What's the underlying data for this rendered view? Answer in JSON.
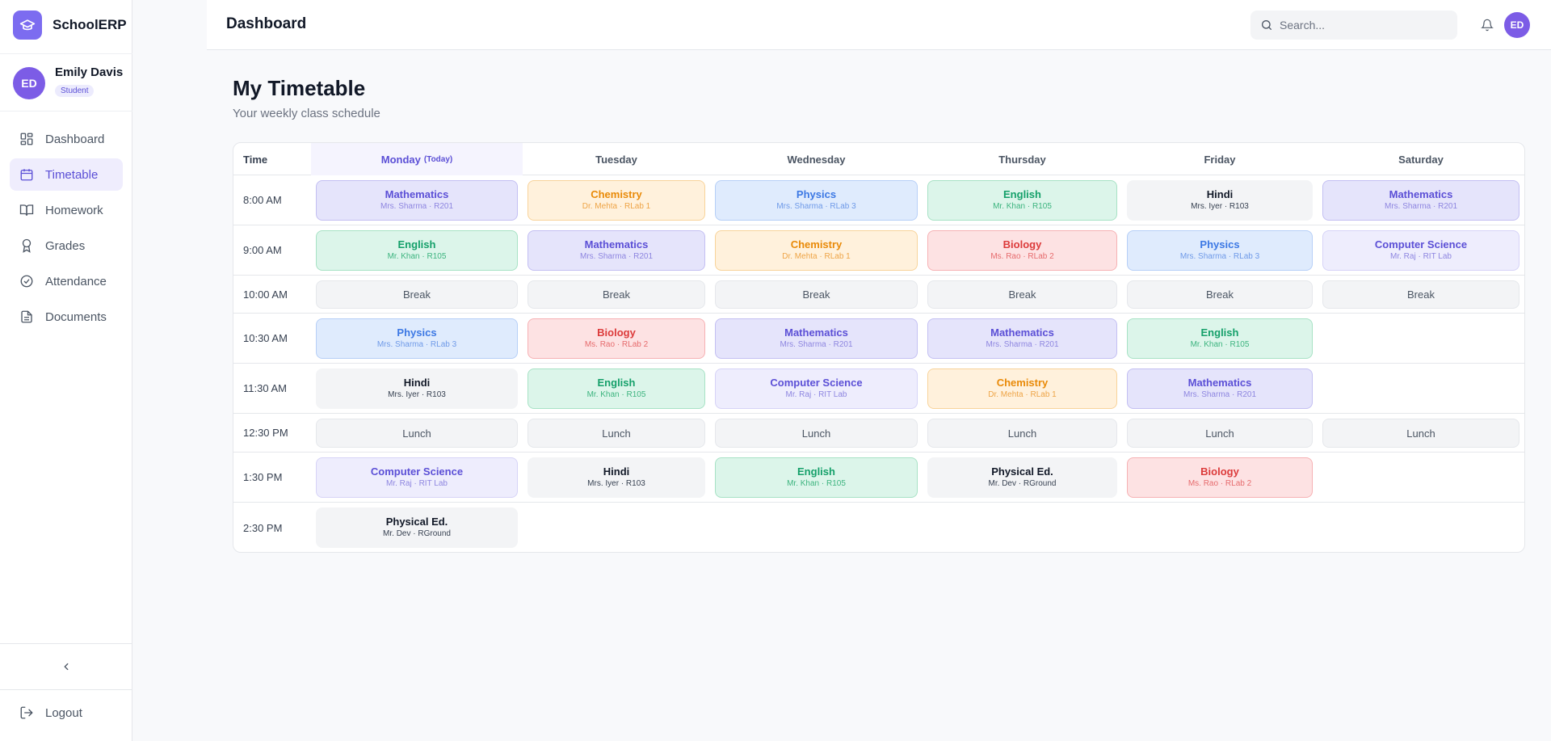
{
  "app": {
    "name": "SchoolERP"
  },
  "user": {
    "name": "Emily Davis",
    "initials": "ED",
    "role": "Student"
  },
  "sidebar": {
    "items": [
      {
        "label": "Dashboard",
        "icon": "grid-icon",
        "active": false
      },
      {
        "label": "Timetable",
        "icon": "calendar-icon",
        "active": true
      },
      {
        "label": "Homework",
        "icon": "book-icon",
        "active": false
      },
      {
        "label": "Grades",
        "icon": "award-icon",
        "active": false
      },
      {
        "label": "Attendance",
        "icon": "check-circle-icon",
        "active": false
      },
      {
        "label": "Documents",
        "icon": "file-icon",
        "active": false
      }
    ],
    "logout": "Logout"
  },
  "header": {
    "title": "Dashboard",
    "search_placeholder": "Search...",
    "avatar": "ED"
  },
  "main": {
    "title": "My Timetable",
    "subtitle": "Your weekly class schedule"
  },
  "timetable": {
    "time_header": "Time",
    "days": [
      "Monday",
      "Tuesday",
      "Wednesday",
      "Thursday",
      "Friday",
      "Saturday"
    ],
    "today_label": "(Today)",
    "times": [
      "8:00 AM",
      "9:00 AM",
      "10:00 AM",
      "10:30 AM",
      "11:30 AM",
      "12:30 PM",
      "1:30 PM",
      "2:30 PM"
    ],
    "cells": [
      [
        {
          "subject": "Mathematics",
          "meta": "Mrs. Sharma · R201",
          "color": "purple"
        },
        {
          "subject": "Chemistry",
          "meta": "Dr. Mehta · RLab 1",
          "color": "orange"
        },
        {
          "subject": "Physics",
          "meta": "Mrs. Sharma · RLab 3",
          "color": "blue"
        },
        {
          "subject": "English",
          "meta": "Mr. Khan · R105",
          "color": "green"
        },
        {
          "subject": "Hindi",
          "meta": "Mrs. Iyer · R103",
          "color": "gray"
        },
        {
          "subject": "Mathematics",
          "meta": "Mrs. Sharma · R201",
          "color": "purple"
        }
      ],
      [
        {
          "subject": "English",
          "meta": "Mr. Khan · R105",
          "color": "green"
        },
        {
          "subject": "Mathematics",
          "meta": "Mrs. Sharma · R201",
          "color": "purple"
        },
        {
          "subject": "Chemistry",
          "meta": "Dr. Mehta · RLab 1",
          "color": "orange"
        },
        {
          "subject": "Biology",
          "meta": "Ms. Rao · RLab 2",
          "color": "red"
        },
        {
          "subject": "Physics",
          "meta": "Mrs. Sharma · RLab 3",
          "color": "blue"
        },
        {
          "subject": "Computer Science",
          "meta": "Mr. Raj · RIT Lab",
          "color": "lav"
        }
      ],
      [
        {
          "subject": "Break",
          "color": "break"
        },
        {
          "subject": "Break",
          "color": "break"
        },
        {
          "subject": "Break",
          "color": "break"
        },
        {
          "subject": "Break",
          "color": "break"
        },
        {
          "subject": "Break",
          "color": "break"
        },
        {
          "subject": "Break",
          "color": "break"
        }
      ],
      [
        {
          "subject": "Physics",
          "meta": "Mrs. Sharma · RLab 3",
          "color": "blue"
        },
        {
          "subject": "Biology",
          "meta": "Ms. Rao · RLab 2",
          "color": "red"
        },
        {
          "subject": "Mathematics",
          "meta": "Mrs. Sharma · R201",
          "color": "purple"
        },
        {
          "subject": "Mathematics",
          "meta": "Mrs. Sharma · R201",
          "color": "purple"
        },
        {
          "subject": "English",
          "meta": "Mr. Khan · R105",
          "color": "green"
        },
        null
      ],
      [
        {
          "subject": "Hindi",
          "meta": "Mrs. Iyer · R103",
          "color": "gray"
        },
        {
          "subject": "English",
          "meta": "Mr. Khan · R105",
          "color": "green"
        },
        {
          "subject": "Computer Science",
          "meta": "Mr. Raj · RIT Lab",
          "color": "lav"
        },
        {
          "subject": "Chemistry",
          "meta": "Dr. Mehta · RLab 1",
          "color": "orange"
        },
        {
          "subject": "Mathematics",
          "meta": "Mrs. Sharma · R201",
          "color": "purple"
        },
        null
      ],
      [
        {
          "subject": "Lunch",
          "color": "break"
        },
        {
          "subject": "Lunch",
          "color": "break"
        },
        {
          "subject": "Lunch",
          "color": "break"
        },
        {
          "subject": "Lunch",
          "color": "break"
        },
        {
          "subject": "Lunch",
          "color": "break"
        },
        {
          "subject": "Lunch",
          "color": "break"
        }
      ],
      [
        {
          "subject": "Computer Science",
          "meta": "Mr. Raj · RIT Lab",
          "color": "lav"
        },
        {
          "subject": "Hindi",
          "meta": "Mrs. Iyer · R103",
          "color": "gray"
        },
        {
          "subject": "English",
          "meta": "Mr. Khan · R105",
          "color": "green"
        },
        {
          "subject": "Physical Ed.",
          "meta": "Mr. Dev · RGround",
          "color": "gray"
        },
        {
          "subject": "Biology",
          "meta": "Ms. Rao · RLab 2",
          "color": "red"
        },
        null
      ],
      [
        {
          "subject": "Physical Ed.",
          "meta": "Mr. Dev · RGround",
          "color": "gray"
        },
        null,
        null,
        null,
        null,
        null
      ]
    ]
  }
}
